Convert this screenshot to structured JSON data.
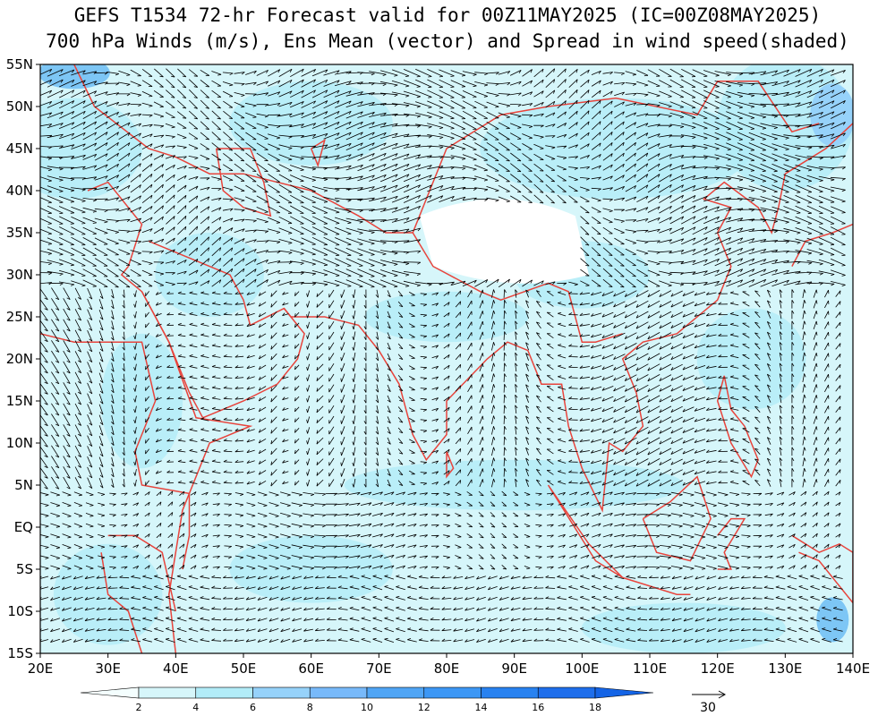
{
  "header": {
    "title": "GEFS T1534 72-hr Forecast valid for 00Z11MAY2025 (IC=00Z08MAY2025)",
    "subtitle": "700 hPa Winds (m/s), Ens Mean (vector) and Spread in wind speed(shaded)"
  },
  "map": {
    "lat_labels": [
      "55N",
      "50N",
      "45N",
      "40N",
      "35N",
      "30N",
      "25N",
      "20N",
      "15N",
      "10N",
      "5N",
      "EQ",
      "5S",
      "10S",
      "15S"
    ],
    "lon_labels": [
      "20E",
      "30E",
      "40E",
      "50E",
      "60E",
      "70E",
      "80E",
      "90E",
      "100E",
      "110E",
      "120E",
      "130E",
      "140E"
    ]
  },
  "colorbar": {
    "labels": [
      2,
      4,
      6,
      8,
      10,
      12,
      14,
      16,
      18
    ]
  },
  "vector_reference": {
    "label": "30"
  }
}
